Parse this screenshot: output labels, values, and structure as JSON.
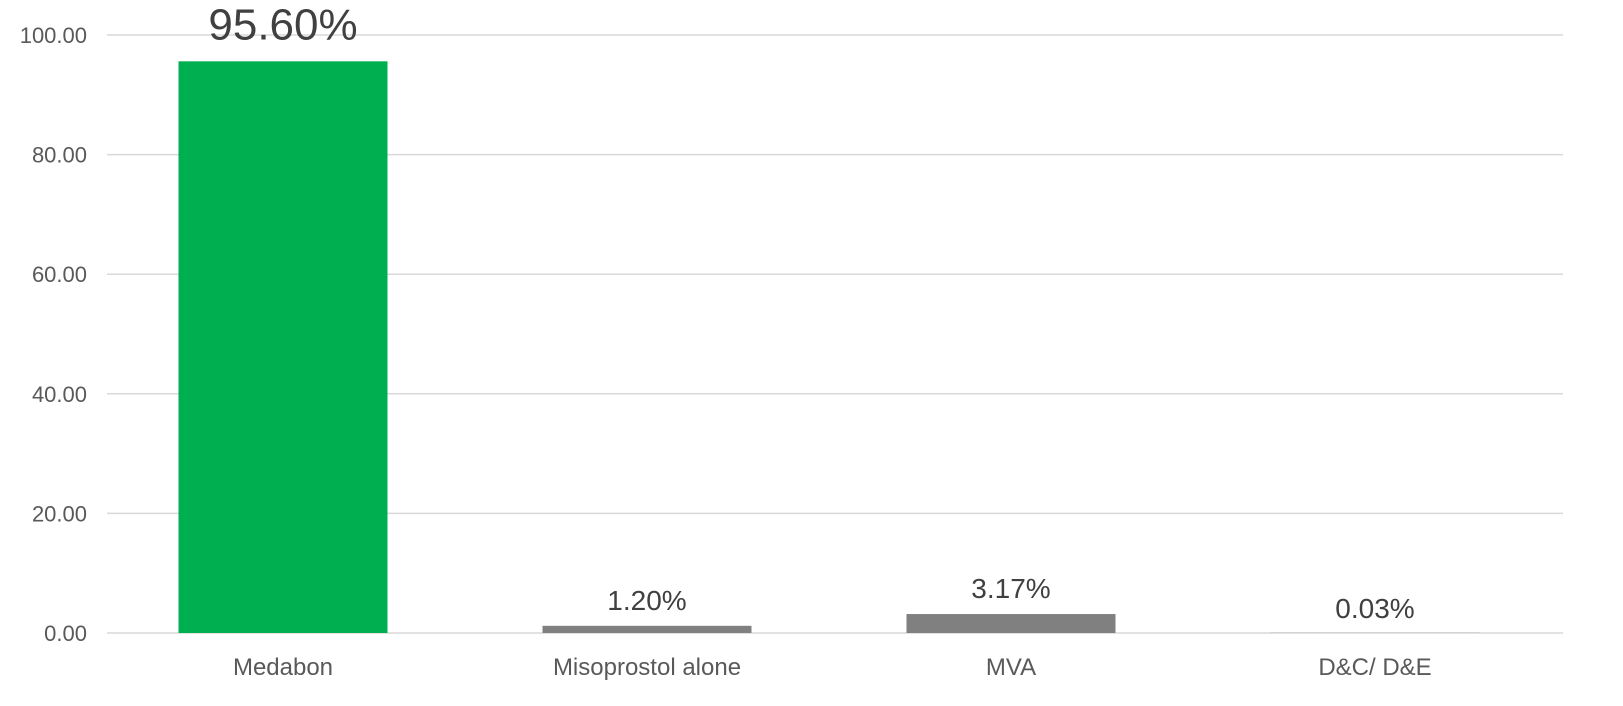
{
  "chart_data": {
    "type": "bar",
    "title": "",
    "xlabel": "",
    "ylabel": "",
    "categories": [
      "Medabon",
      "Misoprostol alone",
      "MVA",
      "D&C/ D&E"
    ],
    "values": [
      95.6,
      1.2,
      3.17,
      0.03
    ],
    "data_labels": [
      "95.60%",
      "1.20%",
      "3.17%",
      "0.03%"
    ],
    "ylim": [
      0,
      100
    ],
    "yticks": [
      0,
      20,
      40,
      60,
      80,
      100
    ],
    "ytick_labels": [
      "0.00",
      "20.00",
      "40.00",
      "60.00",
      "80.00",
      "100.00"
    ],
    "bar_colors": [
      "#00b050",
      "#808080",
      "#808080",
      "#808080"
    ],
    "grid": true,
    "legend": "none"
  }
}
